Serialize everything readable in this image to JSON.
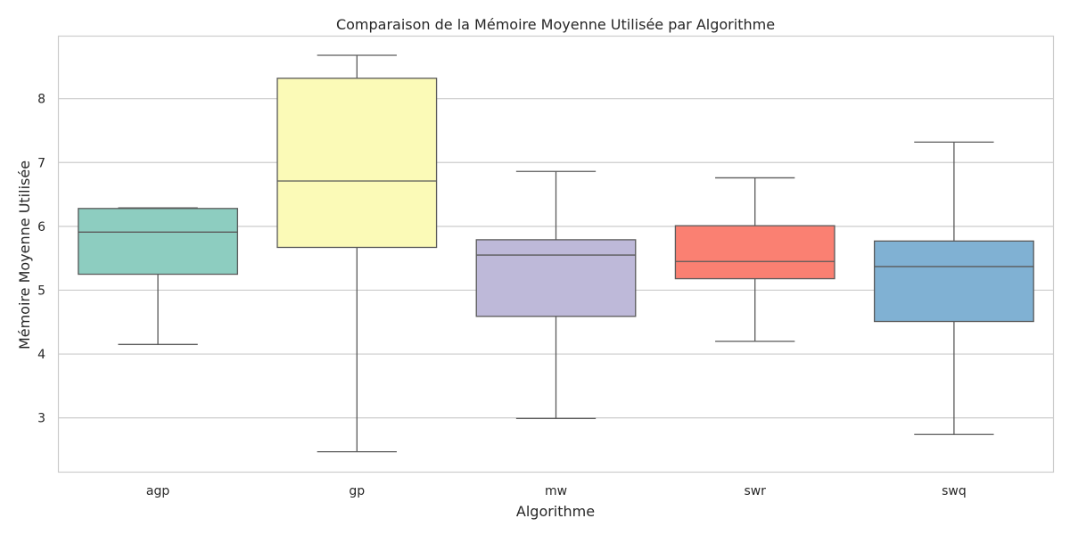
{
  "chart_data": {
    "type": "box",
    "title": "Comparaison de la Mémoire Moyenne Utilisée par Algorithme",
    "xlabel": "Algorithme",
    "ylabel": "Mémoire Moyenne Utilisée",
    "ylim": [
      2.15,
      8.98
    ],
    "yticks": [
      "3",
      "4",
      "5",
      "6",
      "7",
      "8"
    ],
    "grid": true,
    "categories": [
      "agp",
      "gp",
      "mw",
      "swr",
      "swq"
    ],
    "boxes": [
      {
        "name": "agp",
        "whislo": 4.15,
        "q1": 5.25,
        "med": 5.91,
        "q3": 6.28,
        "whishi": 6.29,
        "color": "#8dcdc0"
      },
      {
        "name": "gp",
        "whislo": 2.47,
        "q1": 5.67,
        "med": 6.71,
        "q3": 8.32,
        "whishi": 8.68,
        "color": "#fbfab7"
      },
      {
        "name": "mw",
        "whislo": 2.99,
        "q1": 4.59,
        "med": 5.55,
        "q3": 5.79,
        "whishi": 6.86,
        "color": "#beb9d9"
      },
      {
        "name": "swr",
        "whislo": 4.2,
        "q1": 5.18,
        "med": 5.45,
        "q3": 6.01,
        "whishi": 6.76,
        "color": "#fa8072"
      },
      {
        "name": "swq",
        "whislo": 2.74,
        "q1": 4.51,
        "med": 5.37,
        "q3": 5.77,
        "whishi": 7.32,
        "color": "#80b1d3"
      }
    ]
  }
}
